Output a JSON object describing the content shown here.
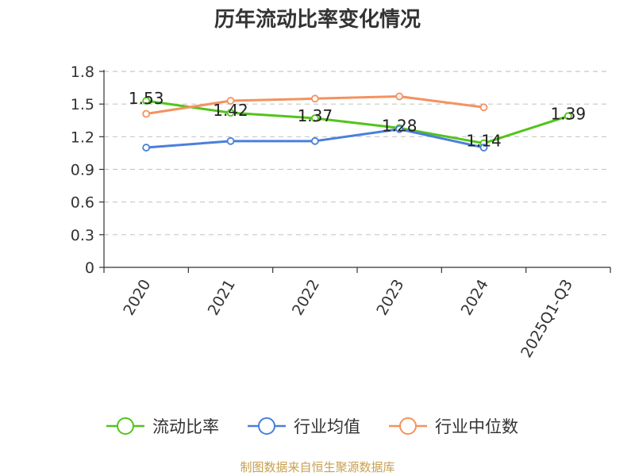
{
  "chart_data": {
    "type": "line",
    "title": "历年流动比率变化情况",
    "categories": [
      "2020",
      "2021",
      "2022",
      "2023",
      "2024",
      "2025Q1-Q3"
    ],
    "ylim": [
      0,
      1.8
    ],
    "yticks": [
      "0",
      "0.3",
      "0.6",
      "0.9",
      "1.2",
      "1.5",
      "1.8"
    ],
    "grid": true,
    "legend_position": "bottom",
    "series": [
      {
        "name": "流动比率",
        "color": "#52c41a",
        "values": [
          1.53,
          1.42,
          1.37,
          1.28,
          1.14,
          1.39
        ],
        "labels": [
          "1.53",
          "1.42",
          "1.37",
          "1.28",
          "1.14",
          "1.39"
        ]
      },
      {
        "name": "行业均值",
        "color": "#4a7fdc",
        "values": [
          1.1,
          1.16,
          1.16,
          1.27,
          1.1,
          null
        ]
      },
      {
        "name": "行业中位数",
        "color": "#f4925e",
        "values": [
          1.41,
          1.53,
          1.55,
          1.57,
          1.47,
          null
        ]
      }
    ]
  },
  "footer": {
    "source": "制图数据来自恒生聚源数据库"
  }
}
